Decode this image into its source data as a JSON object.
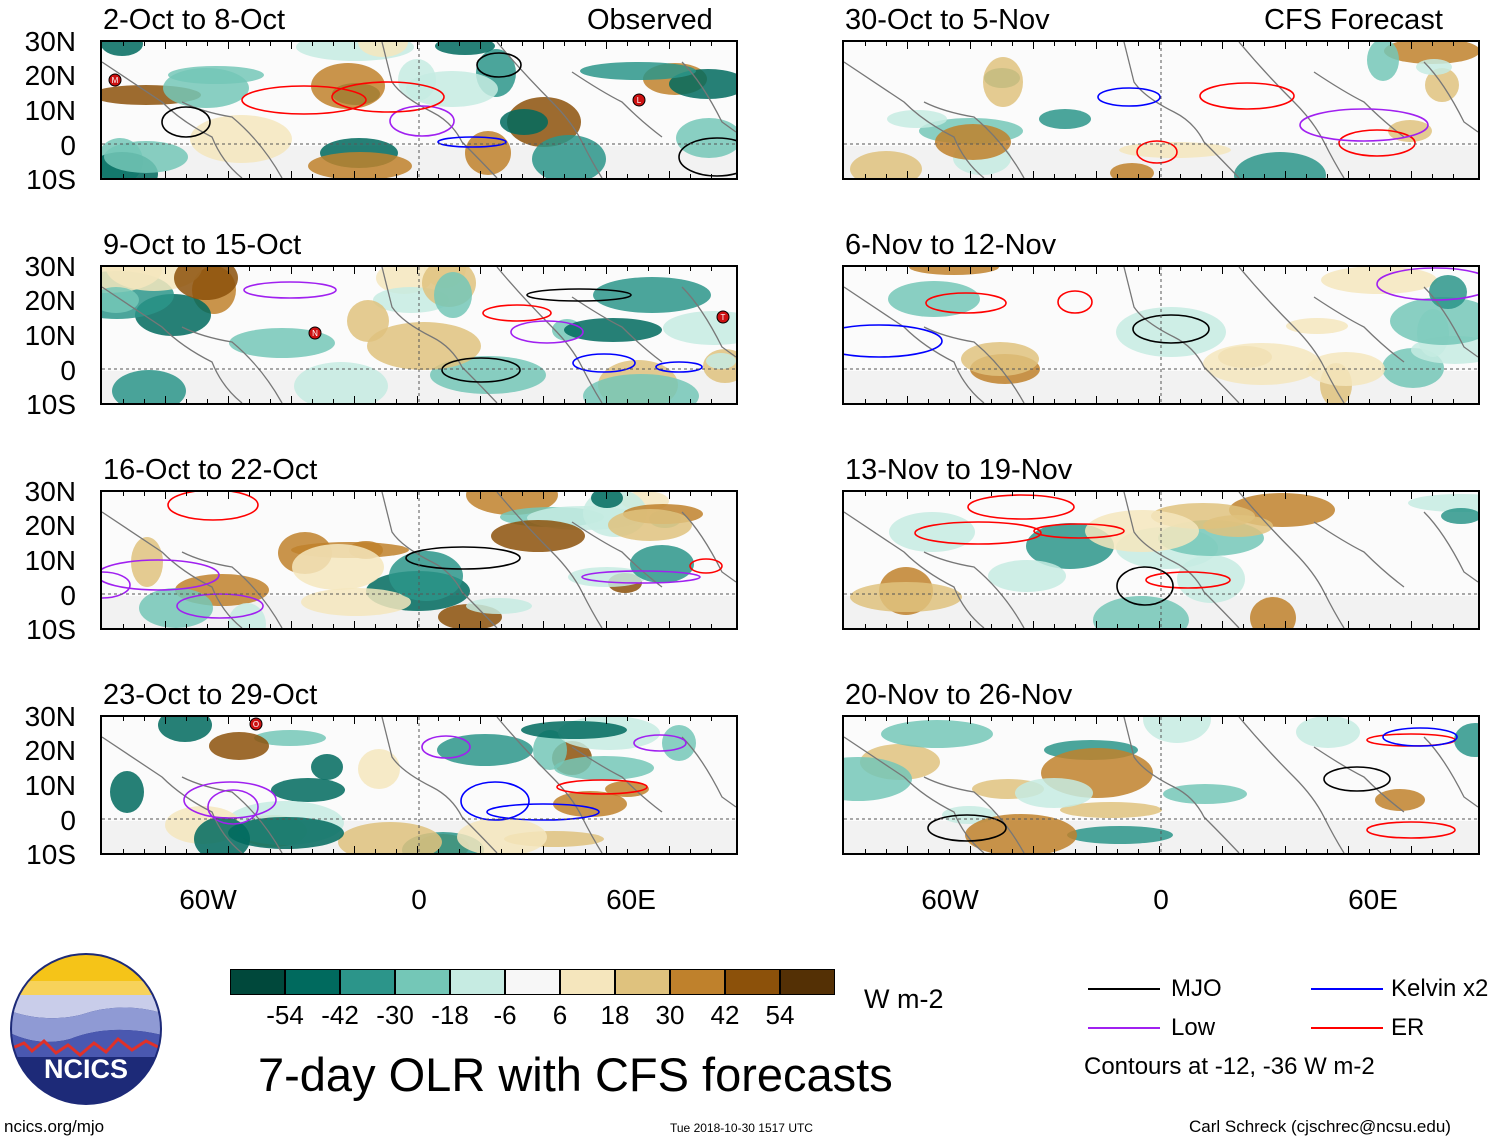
{
  "observed_label": "Observed",
  "forecast_label": "CFS Forecast",
  "panels": [
    {
      "title": "2-Oct to 8-Oct",
      "column": "observed"
    },
    {
      "title": "9-Oct to 15-Oct",
      "column": "observed"
    },
    {
      "title": "16-Oct to 22-Oct",
      "column": "observed"
    },
    {
      "title": "23-Oct to 29-Oct",
      "column": "observed"
    },
    {
      "title": "30-Oct to 5-Nov",
      "column": "forecast"
    },
    {
      "title": "6-Nov to 12-Nov",
      "column": "forecast"
    },
    {
      "title": "13-Nov to 19-Nov",
      "column": "forecast"
    },
    {
      "title": "20-Nov to 26-Nov",
      "column": "forecast"
    }
  ],
  "y_axis_labels": [
    "30N",
    "20N",
    "10N",
    "0",
    "10S"
  ],
  "x_axis_labels": [
    "60W",
    "0",
    "60E"
  ],
  "colorbar": {
    "labels": [
      "-54",
      "-42",
      "-30",
      "-18",
      "-6",
      "6",
      "18",
      "30",
      "42",
      "54"
    ],
    "colors": [
      "#00483b",
      "#006a5e",
      "#2c958a",
      "#74c7b7",
      "#c6ebe2",
      "#f7f7f7",
      "#f5e6bd",
      "#dfc27e",
      "#bf812c",
      "#8c510a",
      "#543005"
    ],
    "unit": "W m-2"
  },
  "legend": {
    "items": [
      {
        "label": "MJO",
        "color": "#000000"
      },
      {
        "label": "Kelvin x2",
        "color": "#0000ff"
      },
      {
        "label": "Low",
        "color": "#a020f0"
      },
      {
        "label": "ER",
        "color": "#ff0000"
      }
    ],
    "contours_note": "Contours at -12, -36 W m-2"
  },
  "main_title": "7-day OLR with CFS forecasts",
  "logo_text": "NCICS",
  "footer": {
    "url": "ncics.org/mjo",
    "timestamp": "Tue 2018-10-30 1517 UTC",
    "author": "Carl Schreck (cjschrec@ncsu.edu)"
  },
  "storm_markers": [
    {
      "panel": 0,
      "letter": "M"
    },
    {
      "panel": 0,
      "letter": "L"
    },
    {
      "panel": 1,
      "letter": "N"
    },
    {
      "panel": 1,
      "letter": "T"
    },
    {
      "panel": 3,
      "letter": "O"
    }
  ]
}
